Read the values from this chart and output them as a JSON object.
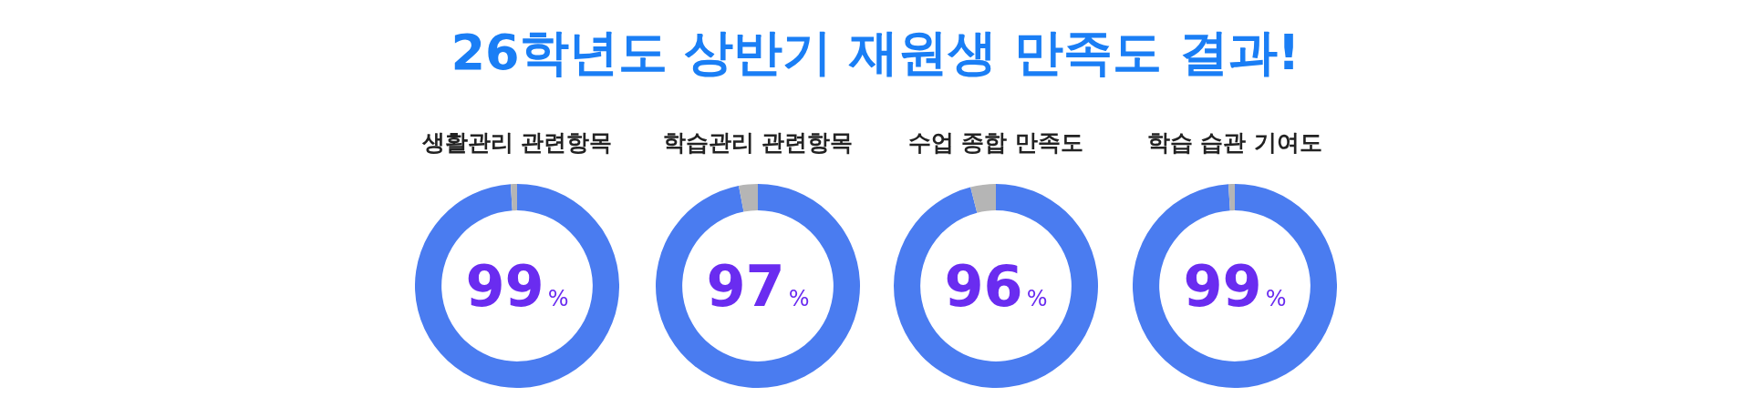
{
  "chart_data": [
    {
      "type": "donut",
      "title": "26학년도 상반기 재원생 만족도 결과!",
      "subtitle": "생활관리 관련항목",
      "categories": [
        null,
        null
      ],
      "values": [
        99,
        1
      ],
      "colors": [
        "#4a7cf0",
        "#b5b5b5"
      ],
      "value_labels": [
        "99%",
        null
      ],
      "legend": false
    },
    {
      "type": "donut",
      "subtitle": "학습관리 관련항목",
      "categories": [
        null,
        null
      ],
      "values": [
        97,
        3
      ],
      "colors": [
        "#4a7cf0",
        "#b5b5b5"
      ],
      "value_labels": [
        "97%",
        null
      ],
      "legend": false
    },
    {
      "type": "donut",
      "subtitle": "수업 종합 만족도",
      "categories": [
        null,
        null
      ],
      "values": [
        96,
        4
      ],
      "colors": [
        "#4a7cf0",
        "#b5b5b5"
      ],
      "value_labels": [
        "96%",
        null
      ],
      "legend": false
    },
    {
      "type": "donut",
      "subtitle": "학습 습관 기여도",
      "categories": [
        null,
        null
      ],
      "values": [
        99,
        1
      ],
      "colors": [
        "#4a7cf0",
        "#b5b5b5"
      ],
      "value_labels": [
        "99%",
        null
      ],
      "legend": false
    }
  ]
}
